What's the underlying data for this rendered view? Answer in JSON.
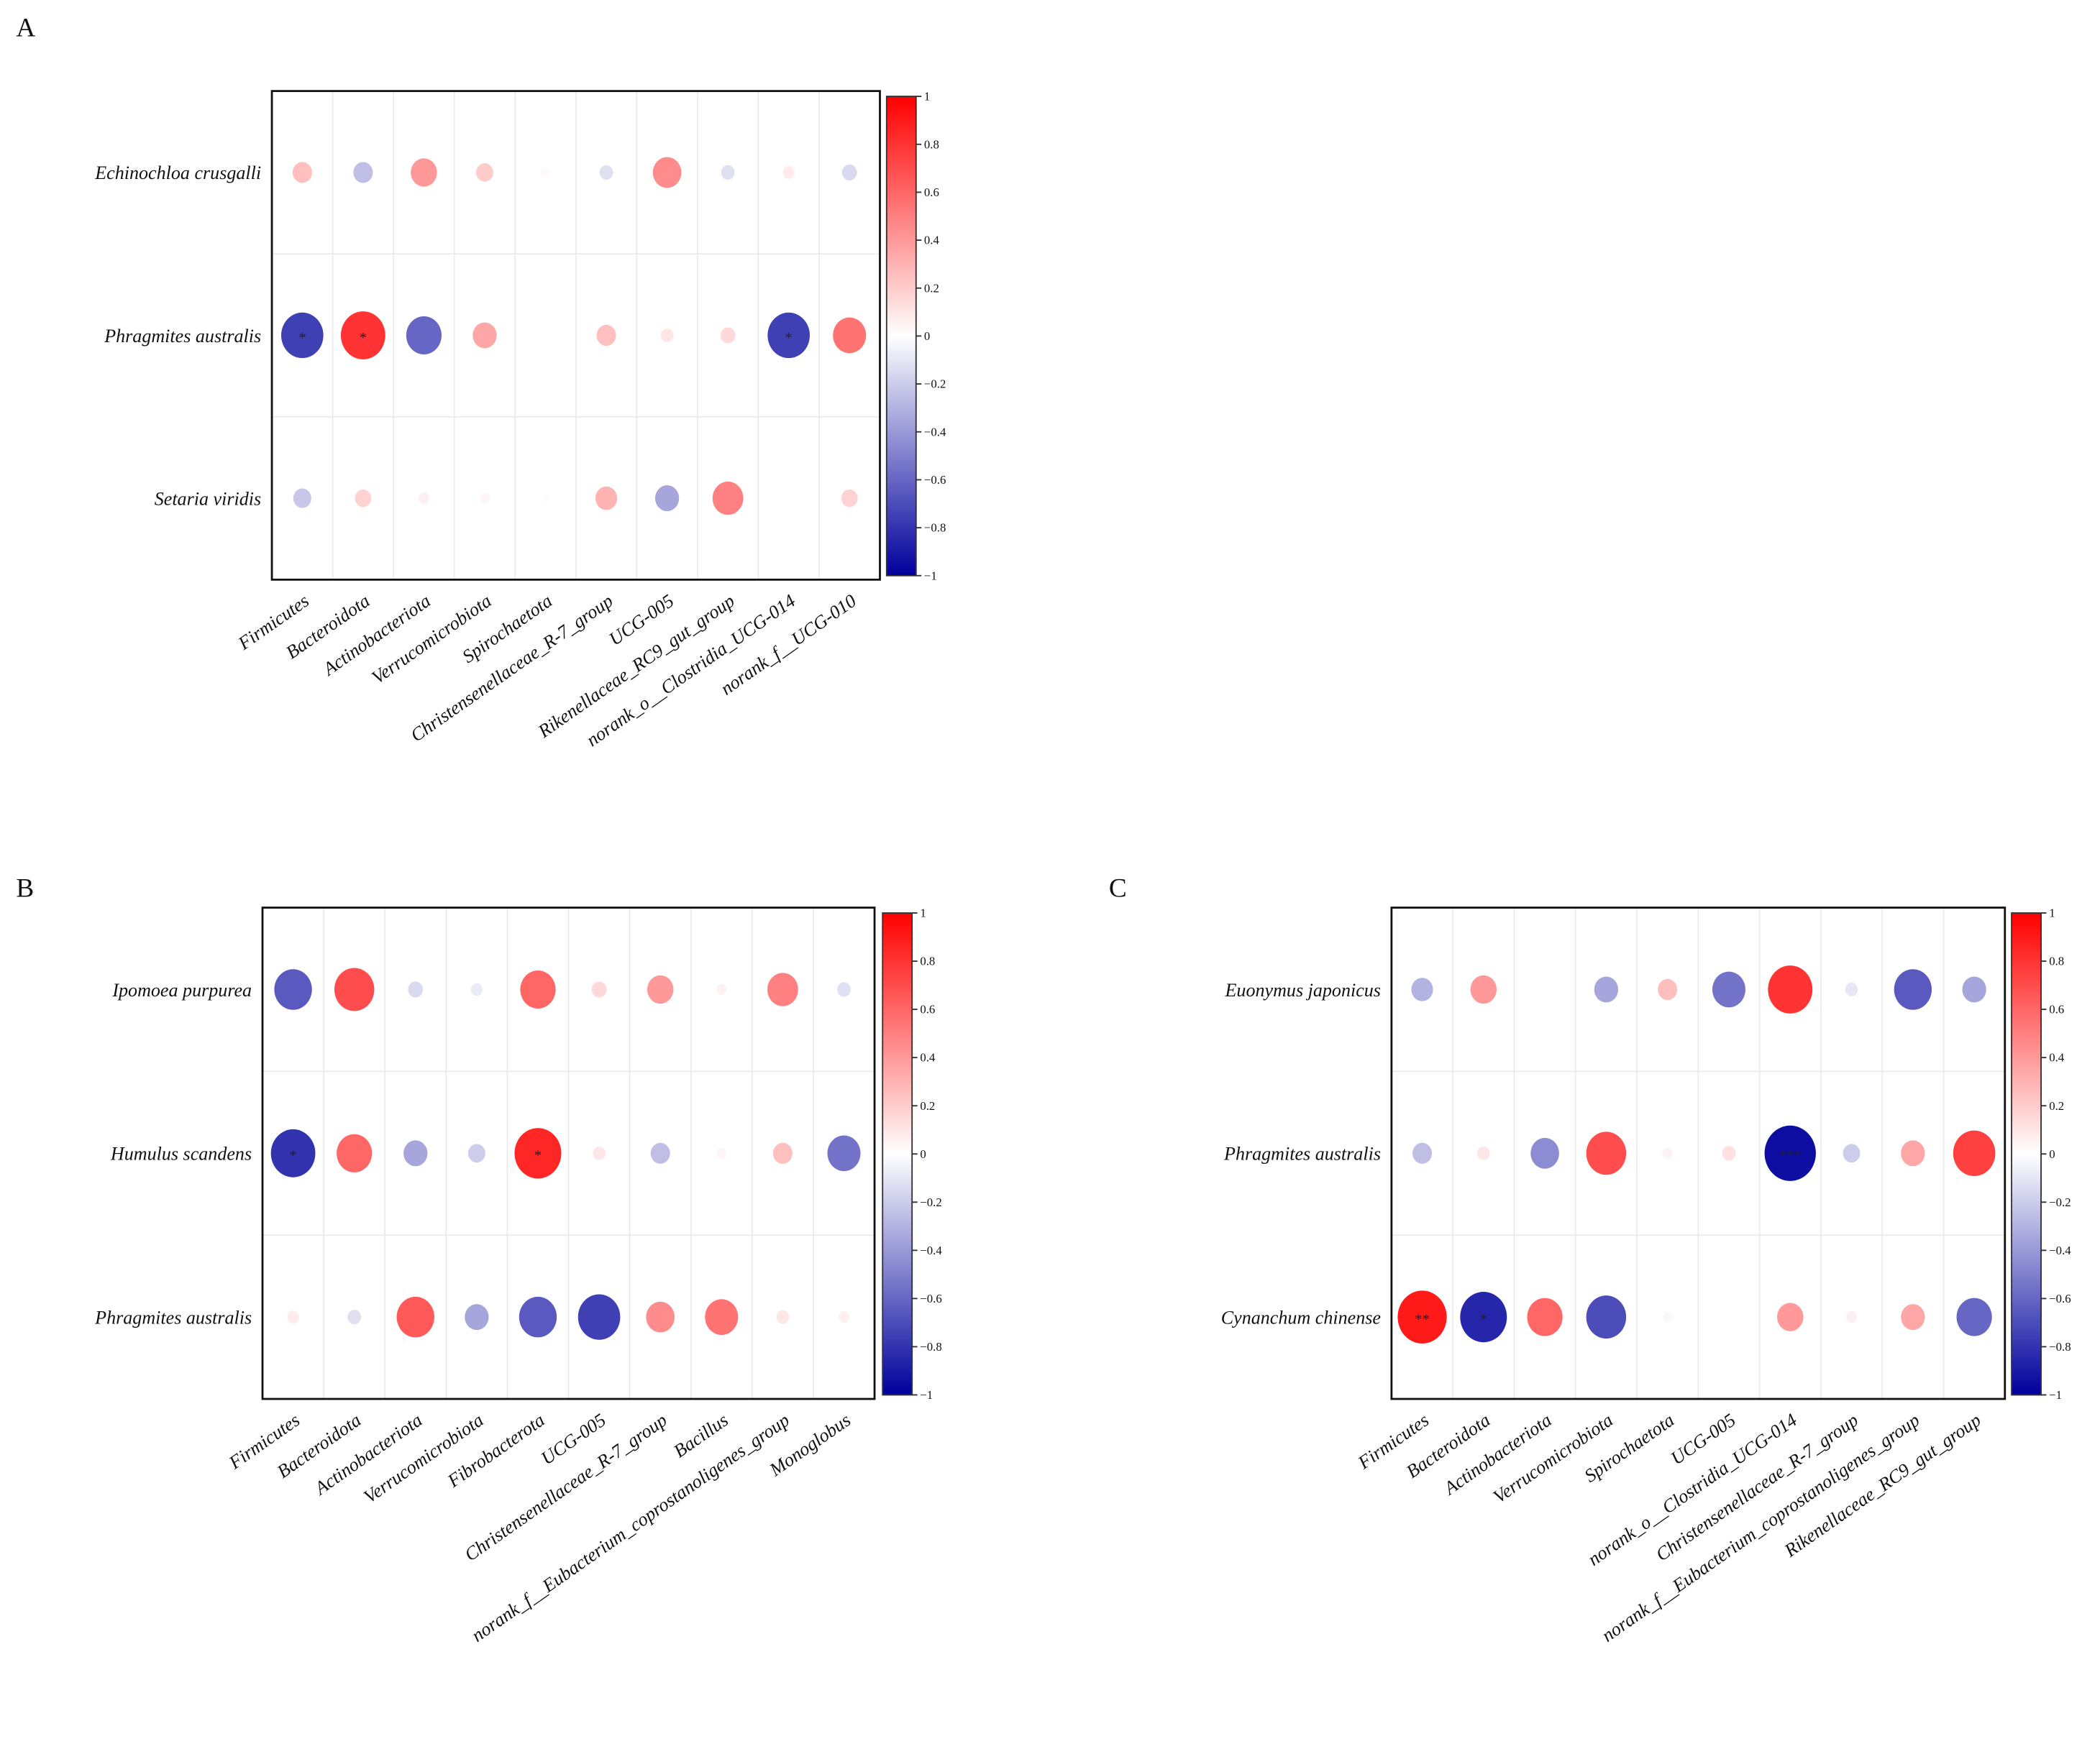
{
  "chart_data": [
    {
      "panel": "A",
      "type": "heatmap",
      "rows": [
        "Echinochloa crusgalli",
        "Phragmites australis",
        "Setaria viridis"
      ],
      "columns": [
        "Firmicutes",
        "Bacteroidota",
        "Actinobacteriota",
        "Verrucomicrobiota",
        "Spirochaetota",
        "Christensenellaceae_R-7_group",
        "UCG-005",
        "Rikenellaceae_RC9_gut_group",
        "norank_o__Clostridia_UCG-014",
        "norank_f__UCG-010"
      ],
      "values": [
        [
          0.25,
          -0.25,
          0.4,
          0.2,
          0.02,
          -0.12,
          0.45,
          -0.12,
          0.08,
          -0.15
        ],
        [
          -0.75,
          0.8,
          -0.6,
          0.35,
          0,
          0.25,
          0.1,
          0.15,
          -0.75,
          0.55
        ],
        [
          -0.22,
          0.18,
          0.06,
          0.04,
          0.01,
          0.3,
          -0.35,
          0.5,
          0,
          0.18
        ]
      ],
      "significance": [
        [
          "",
          "",
          "",
          "",
          "",
          "",
          "",
          "",
          "",
          ""
        ],
        [
          "*",
          "*",
          "",
          "",
          "",
          "",
          "",
          "",
          "*",
          ""
        ],
        [
          "",
          "",
          "",
          "",
          "",
          "",
          "",
          "",
          "",
          ""
        ]
      ],
      "colorbar": {
        "range": [
          -1,
          1
        ],
        "ticks": [
          "1",
          "0.8",
          "0.6",
          "0.4",
          "0.2",
          "0",
          "-0.2",
          "-0.4",
          "-0.6",
          "-0.8",
          "-1"
        ]
      }
    },
    {
      "panel": "B",
      "type": "heatmap",
      "rows": [
        "Ipomoea purpurea",
        "Humulus scandens",
        "Phragmites australis"
      ],
      "columns": [
        "Firmicutes",
        "Bacteroidota",
        "Actinobacteriota",
        "Verrucomicrobiota",
        "Fibrobacterota",
        "UCG-005",
        "Christensenellaceae_R-7_group",
        "Bacillus",
        "norank_f__Eubacterium_coprostanoligenes_group",
        "Monoglobus"
      ],
      "values": [
        [
          -0.65,
          0.7,
          -0.15,
          -0.08,
          0.6,
          0.15,
          0.4,
          0.05,
          0.5,
          -0.12
        ],
        [
          -0.8,
          0.6,
          -0.35,
          -0.2,
          0.85,
          0.1,
          -0.25,
          0.04,
          0.25,
          -0.55
        ],
        [
          0.08,
          -0.12,
          0.65,
          -0.35,
          -0.65,
          -0.75,
          0.45,
          0.55,
          0.1,
          0.06
        ]
      ],
      "significance": [
        [
          "",
          "",
          "",
          "",
          "",
          "",
          "",
          "",
          "",
          ""
        ],
        [
          "*",
          "",
          "",
          "",
          "*",
          "",
          "",
          "",
          "",
          ""
        ],
        [
          "",
          "",
          "",
          "",
          "",
          "",
          "",
          "",
          "",
          ""
        ]
      ],
      "colorbar": {
        "range": [
          -1,
          1
        ],
        "ticks": [
          "1",
          "0.8",
          "0.6",
          "0.4",
          "0.2",
          "0",
          "-0.2",
          "-0.4",
          "-0.6",
          "-0.8",
          "-1"
        ]
      }
    },
    {
      "panel": "C",
      "type": "heatmap",
      "rows": [
        "Euonymus japonicus",
        "Phragmites australis",
        "Cynanchum chinense"
      ],
      "columns": [
        "Firmicutes",
        "Bacteroidota",
        "Actinobacteriota",
        "Verrucomicrobiota",
        "Spirochaetota",
        "UCG-005",
        "norank_o__Clostridia_UCG-014",
        "Christensenellaceae_R-7_group",
        "norank_f__Eubacterium_coprostanoligenes_group",
        "Rikenellaceae_RC9_gut_group"
      ],
      "values": [
        [
          -0.3,
          0.4,
          0,
          -0.35,
          0.25,
          -0.55,
          0.8,
          -0.1,
          -0.65,
          -0.35
        ],
        [
          -0.25,
          0.1,
          -0.45,
          0.7,
          0.05,
          0.12,
          -0.95,
          -0.2,
          0.35,
          0.75
        ],
        [
          0.9,
          -0.85,
          0.6,
          -0.7,
          0.03,
          0,
          0.4,
          0.06,
          0.35,
          -0.6
        ]
      ],
      "significance": [
        [
          "",
          "",
          "",
          "",
          "",
          "",
          "",
          "",
          "",
          ""
        ],
        [
          "",
          "",
          "",
          "",
          "",
          "",
          "***",
          "",
          "",
          ""
        ],
        [
          "**",
          "*",
          "",
          "",
          "",
          "",
          "",
          "",
          "",
          ""
        ]
      ],
      "colorbar": {
        "range": [
          -1,
          1
        ],
        "ticks": [
          "1",
          "0.8",
          "0.6",
          "0.4",
          "0.2",
          "0",
          "-0.2",
          "-0.4",
          "-0.6",
          "-0.8",
          "-1"
        ]
      }
    }
  ],
  "colors": {
    "negative": "#00009c",
    "zero": "#ffffff",
    "positive": "#ff0000",
    "grid": "#e8e8e8"
  }
}
